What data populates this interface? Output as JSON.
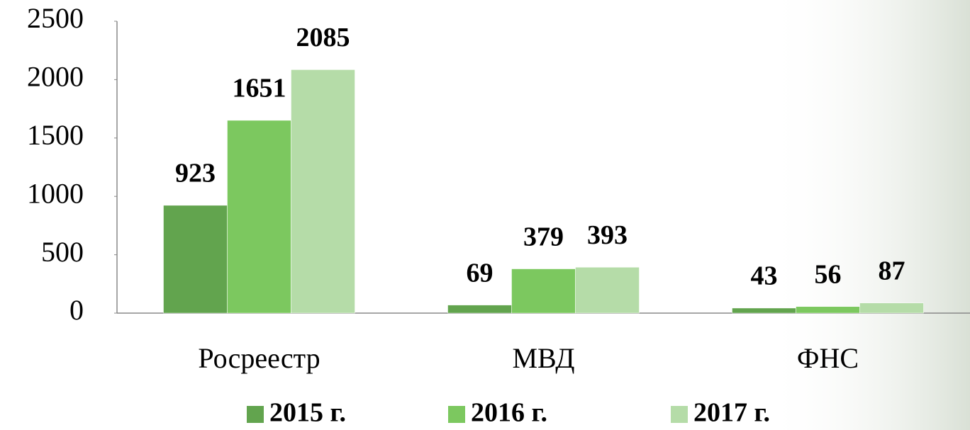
{
  "chart_data": {
    "type": "bar",
    "categories": [
      "Росреестр",
      "МВД",
      "ФНС"
    ],
    "series": [
      {
        "name": "2015 г.",
        "color": "#62a44e",
        "values": [
          923,
          69,
          43
        ]
      },
      {
        "name": "2016 г.",
        "color": "#7cc85f",
        "values": [
          1651,
          379,
          56
        ]
      },
      {
        "name": "2017 г.",
        "color": "#b5dca8",
        "values": [
          2085,
          393,
          87
        ]
      }
    ],
    "ylim": [
      0,
      2500
    ],
    "yticks": [
      0,
      500,
      1000,
      1500,
      2000,
      2500
    ],
    "grid": false,
    "legend": "bottom"
  }
}
